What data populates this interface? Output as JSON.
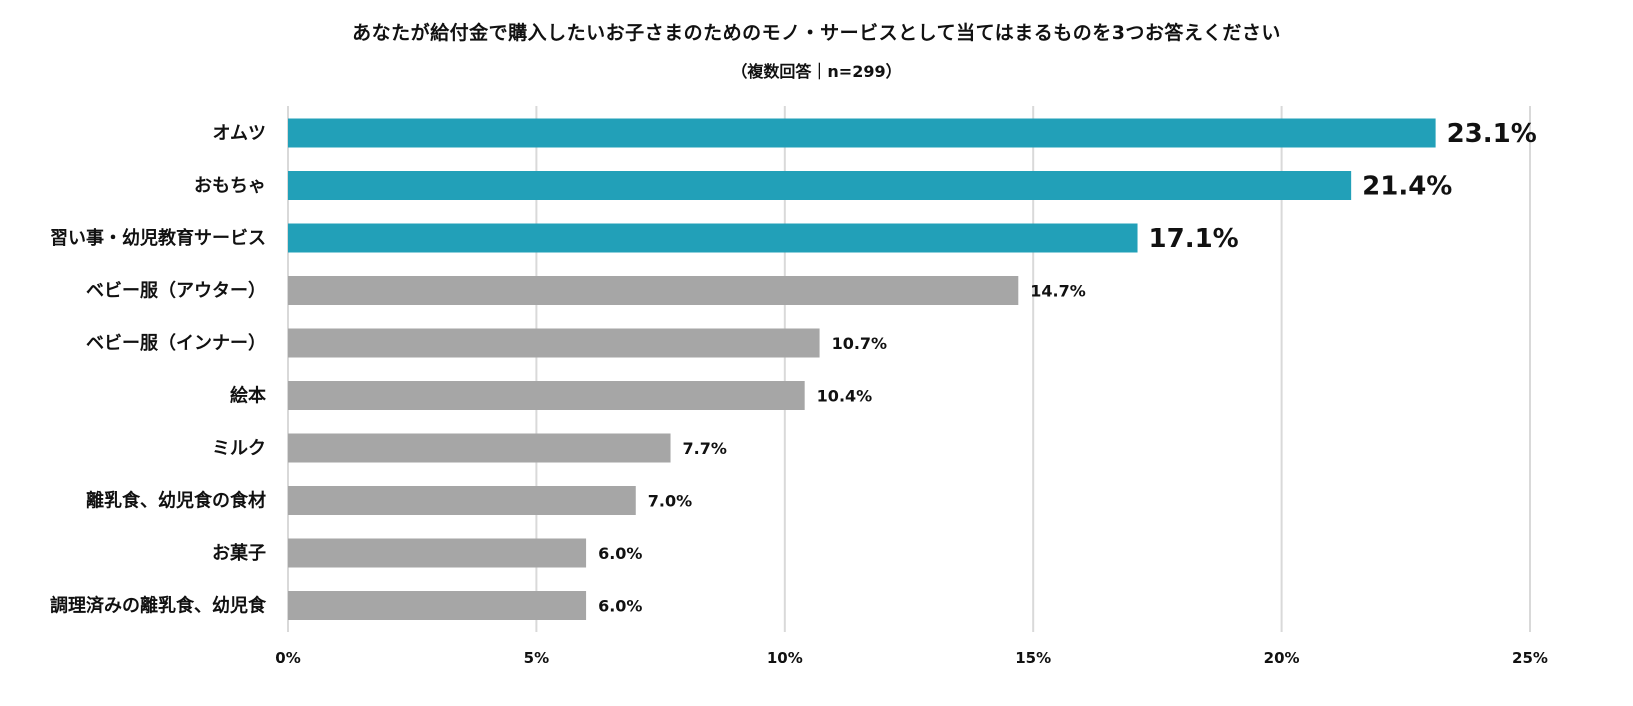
{
  "chart_data": {
    "type": "bar",
    "orientation": "horizontal",
    "title": "あなたが給付金で購入したいお子さまのためのモノ・サービスとして当てはまるものを3つお答えください",
    "subtitle": "（複数回答｜n=299）",
    "categories": [
      "オムツ",
      "おもちゃ",
      "習い事・幼児教育サービス",
      "ベビー服（アウター）",
      "ベビー服（インナー）",
      "絵本",
      "ミルク",
      "離乳食、幼児食の食材",
      "お菓子",
      "調理済みの離乳食、幼児食"
    ],
    "values": [
      23.1,
      21.4,
      17.1,
      14.7,
      10.7,
      10.4,
      7.7,
      7.0,
      6.0,
      6.0
    ],
    "value_labels": [
      "23.1%",
      "21.4%",
      "17.1%",
      "14.7%",
      "10.7%",
      "10.4%",
      "7.7%",
      "7.0%",
      "6.0%",
      "6.0%"
    ],
    "highlight_count": 3,
    "xlim": [
      0,
      25
    ],
    "xticks": [
      0,
      5,
      10,
      15,
      20,
      25
    ],
    "xtick_labels": [
      "0%",
      "5%",
      "10%",
      "15%",
      "20%",
      "25%"
    ],
    "xlabel": "",
    "ylabel": "",
    "grid": true,
    "colors": {
      "highlight": "#22A0B8",
      "default": "#A6A6A6",
      "grid": "#D9D9D9"
    }
  }
}
